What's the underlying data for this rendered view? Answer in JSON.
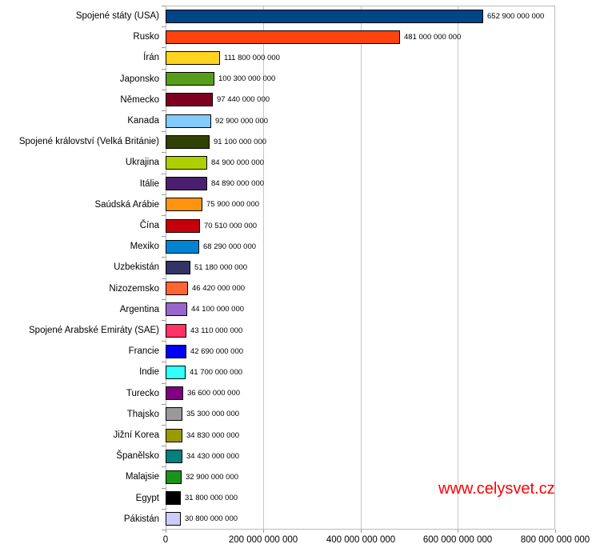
{
  "watermark": {
    "text": "www.celysvet.cz",
    "color": "#FF0000"
  },
  "chart_data": {
    "type": "bar",
    "orientation": "horizontal",
    "title": "",
    "xlabel": "",
    "ylabel": "",
    "xlim": [
      0,
      800000000000
    ],
    "x_ticks": [
      0,
      200000000000,
      400000000000,
      600000000000,
      800000000000
    ],
    "x_tick_labels": [
      "0",
      "200 000 000 000",
      "400 000 000 000",
      "600 000 000 000",
      "800 000 000 000"
    ],
    "grid": "vertical",
    "legend": "none",
    "categories": [
      "Spojené státy (USA)",
      "Rusko",
      "Írán",
      "Japonsko",
      "Německo",
      "Kanada",
      "Spojené království (Velká Británie)",
      "Ukrajina",
      "Itálie",
      "Saúdská Arábie",
      "Čína",
      "Mexiko",
      "Uzbekistán",
      "Nizozemsko",
      "Argentina",
      "Spojené Arabské Emiráty (SAE)",
      "Francie",
      "Indie",
      "Turecko",
      "Thajsko",
      "Jižní Korea",
      "Španělsko",
      "Malajsie",
      "Egypt",
      "Pákistán"
    ],
    "values": [
      652900000000,
      481000000000,
      111800000000,
      100300000000,
      97440000000,
      92900000000,
      91100000000,
      84900000000,
      84890000000,
      75900000000,
      70510000000,
      68290000000,
      51180000000,
      46420000000,
      44100000000,
      43110000000,
      42690000000,
      41700000000,
      36600000000,
      35300000000,
      34830000000,
      34430000000,
      32900000000,
      31800000000,
      30800000000
    ],
    "value_labels": [
      "652 900 000 000",
      "481 000 000 000",
      "111 800 000 000",
      "100 300 000 000",
      "97 440 000 000",
      "92 900 000 000",
      "91 100 000 000",
      "84 900 000 000",
      "84 890 000 000",
      "75 900 000 000",
      "70 510 000 000",
      "68 290 000 000",
      "51 180 000 000",
      "46 420 000 000",
      "44 100 000 000",
      "43 110 000 000",
      "42 690 000 000",
      "41 700 000 000",
      "36 600 000 000",
      "35 300 000 000",
      "34 830 000 000",
      "34 430 000 000",
      "32 900 000 000",
      "31 800 000 000",
      "30 800 000 000"
    ],
    "bar_colors": [
      "#004586",
      "#FF420E",
      "#FFD320",
      "#579D1C",
      "#7E0021",
      "#83CAFF",
      "#314004",
      "#AECF00",
      "#4B1F6F",
      "#FF950E",
      "#C5000B",
      "#0084D1",
      "#333366",
      "#FF6633",
      "#9966CC",
      "#FF3366",
      "#0000FF",
      "#33FFFF",
      "#800080",
      "#999999",
      "#999900",
      "#008080",
      "#1A941A",
      "#000000",
      "#CCCCFF"
    ]
  }
}
